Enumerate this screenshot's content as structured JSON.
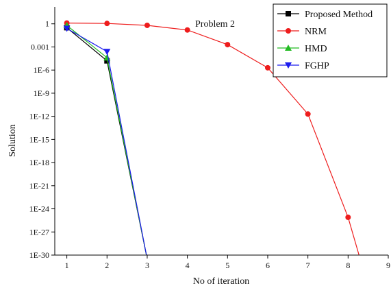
{
  "chart_data": {
    "type": "line",
    "title": "Problem 2",
    "xlabel": "No of iteration",
    "ylabel": "Solution",
    "x_ticks": [
      1,
      2,
      3,
      4,
      5,
      6,
      7,
      8,
      9
    ],
    "xlim": [
      0.7,
      9
    ],
    "y_scale": "log",
    "ylim_exponent": [
      -30,
      2.2
    ],
    "y_ticks": [
      {
        "exp": 0,
        "label": "1"
      },
      {
        "exp": -3,
        "label": "0.001"
      },
      {
        "exp": -6,
        "label": "1E-6"
      },
      {
        "exp": -9,
        "label": "1E-9"
      },
      {
        "exp": -12,
        "label": "1E-12"
      },
      {
        "exp": -15,
        "label": "1E-15"
      },
      {
        "exp": -18,
        "label": "1E-18"
      },
      {
        "exp": -21,
        "label": "1E-21"
      },
      {
        "exp": -24,
        "label": "1E-24"
      },
      {
        "exp": -27,
        "label": "1E-27"
      },
      {
        "exp": -30,
        "label": "1E-30"
      }
    ],
    "legend_position": "top-right",
    "grid": false,
    "series": [
      {
        "name": "Proposed Method",
        "color": "#000000",
        "marker": "square",
        "x": [
          1,
          2,
          3
        ],
        "y_exp": [
          -0.5,
          -4.8,
          -30.5
        ]
      },
      {
        "name": "NRM",
        "color": "#ee1c1c",
        "marker": "circle",
        "x": [
          1,
          2,
          3,
          4,
          5,
          6,
          7,
          8,
          8.3
        ],
        "y_exp": [
          0.1,
          0.05,
          -0.2,
          -0.8,
          -2.7,
          -5.7,
          -11.7,
          -25.1,
          -30.5
        ]
      },
      {
        "name": "HMD",
        "color": "#22bb22",
        "marker": "triangle-up",
        "x": [
          1,
          2,
          3
        ],
        "y_exp": [
          -0.2,
          -4.4,
          -30.5
        ]
      },
      {
        "name": "FGHP",
        "color": "#1c1cee",
        "marker": "triangle-down",
        "x": [
          1,
          2,
          3
        ],
        "y_exp": [
          -0.6,
          -3.6,
          -30.5
        ]
      }
    ]
  }
}
